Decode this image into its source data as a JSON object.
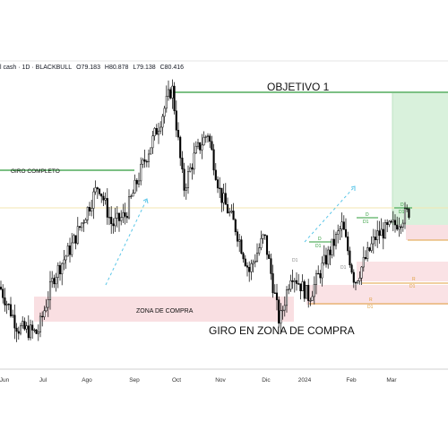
{
  "header": {
    "symbol": "l cash · 1D · BLACKBULL",
    "open": "O79.183",
    "high": "H80.878",
    "low": "L79.138",
    "close": "C80.416"
  },
  "annotations": {
    "objective": "OBJETIVO 1",
    "giro_completo": "GIRO COMPLETO",
    "zona_de_compra": "ZONA DE COMPRA",
    "giro_en_zona": "GIRO EN ZONA DE COMPRA"
  },
  "zone_markers": [
    {
      "id": "d1-a-top",
      "text": "D"
    },
    {
      "id": "d1-a-bot",
      "text": "D1"
    },
    {
      "id": "d1-b-top",
      "text": "D"
    },
    {
      "id": "d1-b-bot",
      "text": "D1"
    },
    {
      "id": "d-c-top",
      "text": "D"
    },
    {
      "id": "d-c-bot",
      "text": "D1"
    },
    {
      "id": "r-a-top",
      "text": "R"
    },
    {
      "id": "r-a-bot",
      "text": "D1"
    },
    {
      "id": "r-b-top",
      "text": "R"
    },
    {
      "id": "r-b-bot",
      "text": "D1"
    },
    {
      "id": "v-a",
      "text": "D1"
    },
    {
      "id": "v-b",
      "text": "D1"
    }
  ],
  "colors": {
    "bull": "#000000",
    "bear": "#000000",
    "green_line": "#2e9b3a",
    "buy_zone": "#f9dfe2",
    "target_zone": "#d9f1dc",
    "cyan": "#5bc6e8",
    "orange": "#e0a040"
  },
  "chart_data": {
    "type": "candlestick",
    "title": "",
    "x_tick_labels": [
      "Jun",
      "Jul",
      "Ago",
      "Sep",
      "Oct",
      "Nov",
      "Dic",
      "2024",
      "Feb",
      "Mar"
    ],
    "y_range": [
      66,
      96
    ],
    "levels": {
      "objetivo_1": 94.2,
      "giro_completo": 85.5,
      "zona_de_compra_top": 72.4,
      "zona_de_compra_bottom": 70.6
    },
    "close_path": [
      {
        "month": "Jun",
        "price": 73.5
      },
      {
        "month": "Jul",
        "price": 71.5
      },
      {
        "month": "Ago",
        "price": 83.0
      },
      {
        "month": "Sep",
        "price": 89.5
      },
      {
        "month": "Oct",
        "price": 82.5
      },
      {
        "month": "Nov",
        "price": 79.0
      },
      {
        "month": "Dic",
        "price": 71.0
      },
      {
        "month": "2024",
        "price": 75.5
      },
      {
        "month": "Feb",
        "price": 78.0
      },
      {
        "month": "Mar",
        "price": 80.4
      }
    ]
  }
}
